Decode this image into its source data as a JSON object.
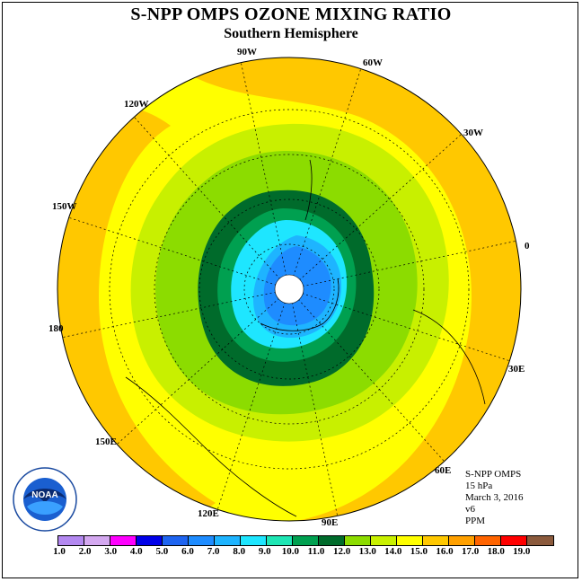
{
  "title": "S-NPP OMPS OZONE MIXING RATIO",
  "subtitle": "Southern Hemisphere",
  "longitude_labels": {
    "lon_90w": "90W",
    "lon_60w": "60W",
    "lon_120w": "120W",
    "lon_30w": "30W",
    "lon_150w": "150W",
    "lon_0": "0",
    "lon_180": "180",
    "lon_30e": "30E",
    "lon_150e": "150E",
    "lon_60e": "60E",
    "lon_120e": "120E",
    "lon_90e": "90E"
  },
  "info": {
    "instrument": "S-NPP OMPS",
    "level": "15 hPa",
    "date": "March 3, 2016",
    "version": "v6",
    "units": "PPM"
  },
  "logo": {
    "text": "NOAA"
  },
  "colorbar": {
    "labels": [
      "1.0",
      "2.0",
      "3.0",
      "4.0",
      "5.0",
      "6.0",
      "7.0",
      "8.0",
      "9.0",
      "10.0",
      "11.0",
      "12.0",
      "13.0",
      "14.0",
      "15.0",
      "16.0",
      "17.0",
      "18.0",
      "19.0"
    ],
    "colors": [
      "#b388f0",
      "#d4a8f0",
      "#ff00ff",
      "#0000e8",
      "#1e64f0",
      "#1e8cff",
      "#1eb4ff",
      "#1ee6ff",
      "#1ee6b4",
      "#00a050",
      "#006b2b",
      "#8cdc00",
      "#c8f000",
      "#ffff00",
      "#ffc800",
      "#ffa000",
      "#ff6400",
      "#ff0000",
      "#8b5a3c"
    ]
  },
  "colors": {
    "ring_11_12": "#8cdc00",
    "ring_12_13": "#c8f000",
    "ring_13_14": "#ffff00",
    "ring_14_15": "#ffc800",
    "ring_10_11": "#006b2b",
    "ring_9_10": "#00a050",
    "ring_8_9": "#1ee6b4",
    "ring_7_8": "#1ee6ff",
    "ring_6_7": "#1eb4ff",
    "ring_5_6": "#1e8cff"
  }
}
